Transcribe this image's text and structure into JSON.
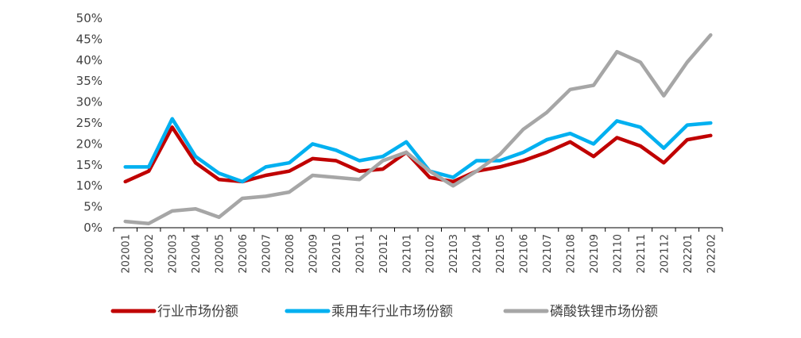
{
  "chart_data": {
    "type": "line",
    "categories": [
      "202001",
      "202002",
      "202003",
      "202004",
      "202005",
      "202006",
      "202007",
      "202008",
      "202009",
      "202010",
      "202011",
      "202012",
      "202101",
      "202102",
      "202103",
      "202104",
      "202105",
      "202106",
      "202107",
      "202108",
      "202109",
      "202110",
      "202111",
      "202112",
      "202201",
      "202202"
    ],
    "ylim": [
      0,
      50
    ],
    "yticks": [
      "0%",
      "5%",
      "10%",
      "15%",
      "20%",
      "25%",
      "30%",
      "35%",
      "40%",
      "45%",
      "50%"
    ],
    "grid": false,
    "legend_position": "bottom",
    "series": [
      {
        "name": "行业市场份额",
        "color": "#C00000",
        "values": [
          11,
          13.5,
          24,
          15.5,
          11.5,
          11,
          12.5,
          13.5,
          16.5,
          16,
          13.5,
          14,
          18,
          12,
          11,
          13.5,
          14.5,
          16,
          18,
          20.5,
          17,
          21.5,
          19.5,
          15.5,
          21,
          22
        ]
      },
      {
        "name": "乘用车行业市场份额",
        "color": "#00B0F0",
        "values": [
          14.5,
          14.5,
          26,
          17,
          13,
          11,
          14.5,
          15.5,
          20,
          18.5,
          16,
          17,
          20.5,
          13.5,
          12,
          16,
          16,
          18,
          21,
          22.5,
          20,
          25.5,
          24,
          19,
          24.5,
          25
        ]
      },
      {
        "name": "磷酸铁锂市场份额",
        "color": "#A6A6A6",
        "values": [
          1.5,
          1,
          4,
          4.5,
          2.5,
          7,
          7.5,
          8.5,
          12.5,
          12,
          11.5,
          16,
          18,
          13.5,
          10,
          13.5,
          17.5,
          23.5,
          27.5,
          33,
          34,
          42,
          39.5,
          31.5,
          39.5,
          46
        ]
      }
    ]
  }
}
